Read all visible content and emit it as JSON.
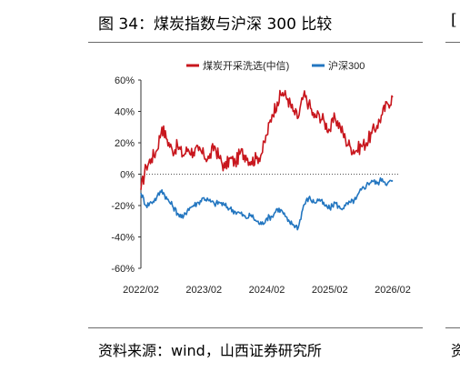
{
  "figure_title": "图 34：煤炭指数与沪深 300 比较",
  "source_note": "资料来源：wind，山西证券研究所",
  "right_edge_fragments": {
    "top": "[",
    "bottom": "资"
  },
  "chart_data": {
    "type": "line",
    "title": "",
    "xlabel": "",
    "ylabel": "",
    "x_ticks": [
      "2022/02",
      "2023/02",
      "2024/02",
      "2025/02",
      "2026/02"
    ],
    "y_ticks": [
      "60%",
      "40%",
      "20%",
      "0%",
      "-20%",
      "-40%",
      "-60%"
    ],
    "ylim": [
      -60,
      60
    ],
    "y_unit": "%",
    "grid": false,
    "legend_position": "top",
    "zero_line": "dotted",
    "x": [
      "2022/02",
      "2022/03",
      "2022/04",
      "2022/05",
      "2022/06",
      "2022/07",
      "2022/08",
      "2022/09",
      "2022/10",
      "2022/11",
      "2022/12",
      "2023/01",
      "2023/02",
      "2023/03",
      "2023/04",
      "2023/05",
      "2023/06",
      "2023/07",
      "2023/08",
      "2023/09",
      "2023/10",
      "2023/11",
      "2023/12",
      "2024/01",
      "2024/02",
      "2024/03",
      "2024/04",
      "2024/05",
      "2024/06",
      "2024/07",
      "2024/08",
      "2024/09",
      "2024/10",
      "2024/11",
      "2024/12",
      "2025/01",
      "2025/02",
      "2025/03",
      "2025/04",
      "2025/05",
      "2025/06",
      "2025/07",
      "2025/08",
      "2025/09",
      "2025/10",
      "2025/11",
      "2025/12",
      "2026/01",
      "2026/02"
    ],
    "series": [
      {
        "name": "煤炭开采洗选(中信)",
        "color": "#c8161d",
        "values": [
          -10,
          5,
          10,
          15,
          30,
          22,
          15,
          18,
          12,
          16,
          14,
          15,
          12,
          10,
          18,
          10,
          4,
          10,
          7,
          14,
          12,
          8,
          10,
          13,
          25,
          38,
          46,
          52,
          48,
          40,
          36,
          50,
          45,
          36,
          38,
          33,
          28,
          36,
          30,
          22,
          17,
          15,
          18,
          20,
          26,
          31,
          38,
          45,
          49
        ]
      },
      {
        "name": "沪深300",
        "color": "#2376c0",
        "values": [
          -12,
          -20,
          -18,
          -15,
          -10,
          -16,
          -20,
          -25,
          -28,
          -22,
          -20,
          -18,
          -15,
          -17,
          -19,
          -18,
          -20,
          -22,
          -24,
          -25,
          -28,
          -26,
          -30,
          -32,
          -28,
          -27,
          -22,
          -24,
          -30,
          -32,
          -34,
          -20,
          -15,
          -18,
          -16,
          -20,
          -22,
          -18,
          -22,
          -20,
          -18,
          -16,
          -10,
          -7,
          -4,
          -6,
          -3,
          -6,
          -4
        ]
      }
    ]
  }
}
